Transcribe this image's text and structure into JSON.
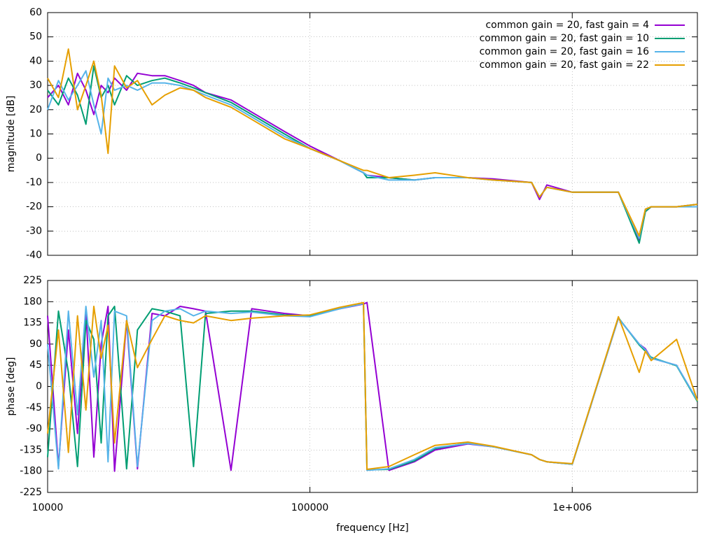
{
  "chart_data": [
    {
      "type": "line",
      "ylabel": "magnitude [dB]",
      "log_x": true,
      "grid": true,
      "legend": "top right",
      "x": [
        10000,
        11000,
        12000,
        13000,
        14000,
        15000,
        16000,
        17000,
        18000,
        20000,
        22000,
        25000,
        28000,
        32000,
        36000,
        40000,
        50000,
        60000,
        80000,
        100000,
        130000,
        160000,
        165000,
        200000,
        250000,
        300000,
        400000,
        500000,
        700000,
        750000,
        800000,
        1000000,
        1500000,
        1800000,
        1900000,
        2000000,
        2500000,
        3000000
      ],
      "xlim": [
        10000,
        3000000
      ],
      "xticks": [
        10000,
        100000,
        1000000
      ],
      "ylim": [
        -40,
        60
      ],
      "yticks": [
        -40,
        -30,
        -20,
        -10,
        0,
        10,
        20,
        30,
        40,
        50,
        60
      ],
      "series": [
        {
          "name": "common gain = 20, fast gain = 4",
          "color": "#9400d3",
          "values": [
            25,
            30,
            22,
            35,
            28,
            18,
            30,
            27,
            33,
            28,
            35,
            34,
            34,
            32,
            30,
            27,
            24,
            19,
            11,
            5,
            -1,
            -6,
            -7,
            -8,
            -9,
            -8,
            -8,
            -8.5,
            -10,
            -17,
            -11,
            -14,
            -14,
            -34,
            -22,
            -20,
            -20,
            -19
          ]
        },
        {
          "name": "common gain = 20, fast gain = 10",
          "color": "#009e73",
          "values": [
            28,
            22,
            33,
            26,
            14,
            38,
            25,
            30,
            22,
            34,
            30,
            32,
            33,
            31,
            29,
            27,
            23,
            18,
            10,
            4,
            -1,
            -6,
            -8,
            -8,
            -9,
            -8,
            -8,
            -9,
            -10,
            -16,
            -12,
            -14,
            -14,
            -35,
            -22,
            -20,
            -20,
            -19
          ]
        },
        {
          "name": "common gain = 20, fast gain = 16",
          "color": "#56b4e9",
          "values": [
            20,
            32,
            24,
            30,
            36,
            22,
            10,
            33,
            28,
            30,
            28,
            31,
            31,
            30,
            28,
            26,
            22,
            17,
            9,
            4,
            -1,
            -6,
            -7,
            -9,
            -9,
            -8,
            -8,
            -9,
            -10,
            -16,
            -12,
            -14,
            -14,
            -33,
            -21,
            -20,
            -20,
            -20
          ]
        },
        {
          "name": "common gain = 20, fast gain = 22",
          "color": "#e69f00",
          "values": [
            33,
            25,
            45,
            20,
            30,
            40,
            26,
            2,
            38,
            29,
            32,
            22,
            26,
            29,
            28,
            25,
            21,
            16,
            8,
            4,
            -1,
            -5,
            -5,
            -8,
            -7,
            -6,
            -8,
            -9,
            -10,
            -16,
            -12,
            -14,
            -14,
            -32,
            -21,
            -20,
            -20,
            -19
          ]
        }
      ]
    },
    {
      "type": "line",
      "ylabel": "phase [deg]",
      "xlabel": "frequency [Hz]",
      "log_x": true,
      "grid": true,
      "x": [
        10000,
        11000,
        12000,
        13000,
        14000,
        15000,
        16000,
        17000,
        18000,
        20000,
        22000,
        25000,
        28000,
        32000,
        36000,
        40000,
        50000,
        60000,
        80000,
        100000,
        130000,
        160000,
        165000,
        200000,
        250000,
        300000,
        400000,
        500000,
        700000,
        750000,
        800000,
        1000000,
        1500000,
        1800000,
        1900000,
        2000000,
        2500000,
        3000000
      ],
      "xlim": [
        10000,
        3000000
      ],
      "xticks": [
        10000,
        100000,
        {
          "value": 1000000,
          "label": "1e+006"
        }
      ],
      "ylim": [
        -225,
        225
      ],
      "yticks": [
        -225,
        -180,
        -135,
        -90,
        -45,
        0,
        45,
        90,
        135,
        180,
        225
      ],
      "series": [
        {
          "color": "#9400d3",
          "values": [
            150,
            -170,
            120,
            -100,
            160,
            -150,
            90,
            170,
            -180,
            140,
            -175,
            155,
            150,
            170,
            165,
            160,
            -178,
            165,
            155,
            150,
            165,
            175,
            178,
            -178,
            -160,
            -135,
            -122,
            -128,
            -145,
            -155,
            -160,
            -165,
            145,
            90,
            80,
            60,
            45,
            -30
          ]
        },
        {
          "color": "#009e73",
          "values": [
            -150,
            160,
            30,
            -170,
            140,
            100,
            -120,
            150,
            170,
            -175,
            120,
            165,
            160,
            150,
            -170,
            155,
            160,
            160,
            152,
            150,
            166,
            176,
            -177,
            -176,
            -158,
            -132,
            -120,
            -128,
            -145,
            -155,
            -160,
            -165,
            146,
            88,
            75,
            62,
            44,
            -32
          ]
        },
        {
          "color": "#56b4e9",
          "values": [
            90,
            -175,
            160,
            -60,
            170,
            20,
            140,
            -160,
            160,
            150,
            -170,
            140,
            160,
            165,
            150,
            160,
            155,
            158,
            150,
            148,
            165,
            176,
            -178,
            -175,
            -155,
            -130,
            -121,
            -128,
            -145,
            -155,
            -160,
            -165,
            145,
            90,
            78,
            60,
            45,
            -30
          ]
        },
        {
          "color": "#e69f00",
          "values": [
            -100,
            120,
            -140,
            150,
            -50,
            170,
            60,
            130,
            -120,
            140,
            40,
            100,
            150,
            140,
            135,
            150,
            140,
            145,
            150,
            152,
            168,
            178,
            -176,
            -170,
            -145,
            -125,
            -118,
            -127,
            -145,
            -155,
            -160,
            -164,
            148,
            30,
            75,
            55,
            100,
            -30
          ]
        }
      ]
    }
  ]
}
